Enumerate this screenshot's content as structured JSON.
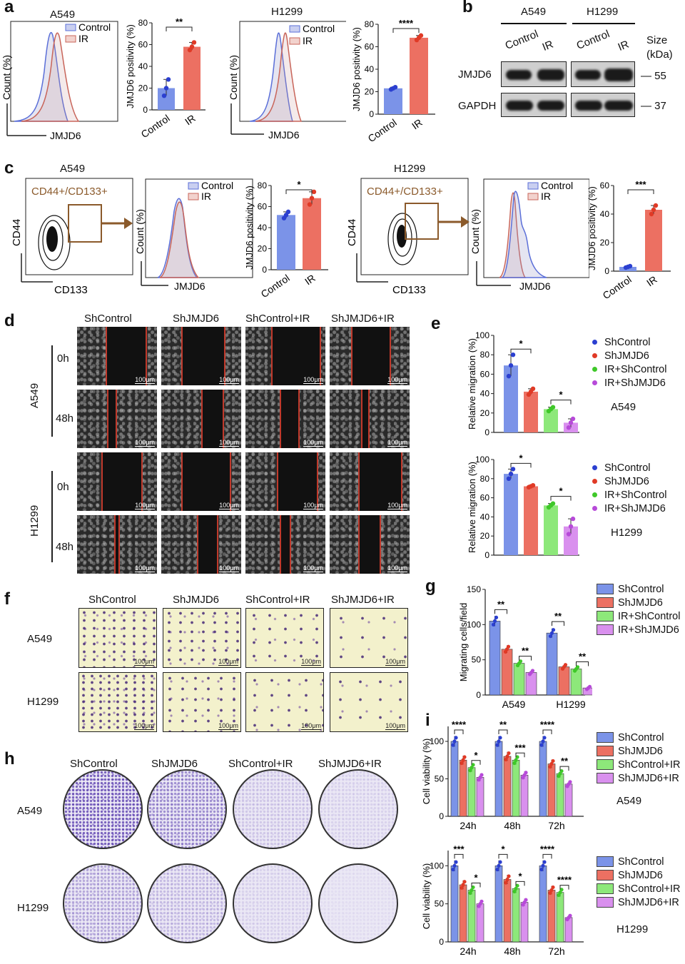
{
  "panel_labels": {
    "a": "a",
    "b": "b",
    "c": "c",
    "d": "d",
    "e": "e",
    "f": "f",
    "g": "g",
    "h": "h",
    "i": "i"
  },
  "panel_a": {
    "cell_lines": [
      "A549",
      "H1299"
    ],
    "hist_xlabel": "JMJD6",
    "hist_ylabel": "Count (%)",
    "legend": [
      "Control",
      "IR"
    ],
    "bar_ylabel": "JMJD6 positivity (%)"
  },
  "panel_b": {
    "cell_lines": [
      "A549",
      "H1299"
    ],
    "lanes": [
      "Control",
      "IR"
    ],
    "size_label": "Size\n(kDa)",
    "size_title": "Size",
    "size_unit": "(kDa)",
    "rows": [
      {
        "protein": "JMJD6",
        "size": "— 55"
      },
      {
        "protein": "GAPDH",
        "size": "— 37"
      }
    ]
  },
  "panel_c": {
    "cell_lines": [
      "A549",
      "H1299"
    ],
    "gate_label": "CD44+/CD133+",
    "dot_ylabel": "CD44",
    "dot_xlabel": "CD133",
    "hist_xlabel": "JMJD6",
    "hist_ylabel": "Count (%)",
    "legend": [
      "Control",
      "IR"
    ],
    "bar_ylabel": "JMJD6 positivity (%)"
  },
  "panel_d": {
    "columns": [
      "ShControl",
      "ShJMJD6",
      "ShControl+IR",
      "ShJMJD6+IR"
    ],
    "cell_lines": [
      "A549",
      "H1299"
    ],
    "timepoints": [
      "0h",
      "48h"
    ],
    "scale": "100μm"
  },
  "panel_f": {
    "columns": [
      "ShControl",
      "ShJMJD6",
      "ShControl+IR",
      "ShJMJD6+IR"
    ],
    "cell_lines": [
      "A549",
      "H1299"
    ],
    "scale": "100μm"
  },
  "panel_h": {
    "columns": [
      "ShControl",
      "ShJMJD6",
      "ShControl+IR",
      "ShJMJD6+IR"
    ],
    "cell_lines": [
      "A549",
      "H1299"
    ]
  },
  "colors": {
    "blue": "#7b93e8",
    "red": "#ec7062",
    "green": "#8de87a",
    "purple": "#d990ee",
    "blue_dot": "#2b3fd0",
    "red_dot": "#e03a26",
    "green_dot": "#3fc829",
    "purple_dot": "#b74ad9",
    "hist_blue": "#5b6fd8",
    "hist_red": "#c8655a"
  },
  "chart_data": [
    {
      "id": "a-A549",
      "type": "bar",
      "categories": [
        "Control",
        "IR"
      ],
      "values": [
        20,
        58
      ],
      "ylim": [
        0,
        80
      ],
      "yticks": [
        0,
        20,
        40,
        60,
        80
      ],
      "ylabel": "JMJD6 positivity (%)",
      "sig": [
        {
          "pair": [
            0,
            1
          ],
          "label": "**"
        }
      ],
      "points": [
        [
          13,
          20,
          28
        ],
        [
          55,
          58,
          62
        ]
      ]
    },
    {
      "id": "a-H1299",
      "type": "bar",
      "categories": [
        "Control",
        "IR"
      ],
      "values": [
        23,
        68
      ],
      "ylim": [
        0,
        80
      ],
      "yticks": [
        0,
        20,
        40,
        60,
        80
      ],
      "ylabel": "JMJD6 positivity (%)",
      "sig": [
        {
          "pair": [
            0,
            1
          ],
          "label": "****"
        }
      ],
      "points": [
        [
          22,
          23,
          24
        ],
        [
          66,
          68,
          70
        ]
      ]
    },
    {
      "id": "c-A549",
      "type": "bar",
      "categories": [
        "Control",
        "IR"
      ],
      "values": [
        52,
        68
      ],
      "ylim": [
        0,
        80
      ],
      "yticks": [
        0,
        20,
        40,
        60,
        80
      ],
      "ylabel": "JMJD6 positivity (%)",
      "sig": [
        {
          "pair": [
            0,
            1
          ],
          "label": "*"
        }
      ],
      "points": [
        [
          49,
          52,
          55
        ],
        [
          62,
          68,
          74
        ]
      ]
    },
    {
      "id": "c-H1299",
      "type": "bar",
      "categories": [
        "Control",
        "IR"
      ],
      "values": [
        3,
        43
      ],
      "ylim": [
        0,
        60
      ],
      "yticks": [
        0,
        20,
        40,
        60
      ],
      "ylabel": "JMJD6 positivity (%)",
      "sig": [
        {
          "pair": [
            0,
            1
          ],
          "label": "***"
        }
      ],
      "points": [
        [
          2.5,
          3,
          3.5
        ],
        [
          40,
          43,
          46
        ]
      ]
    },
    {
      "id": "e-A549",
      "type": "bar",
      "series_names": [
        "ShControl",
        "ShJMJD6",
        "IR+ShControl",
        "IR+ShJMJD6"
      ],
      "values": [
        69,
        42,
        24,
        10
      ],
      "ylim": [
        0,
        100
      ],
      "yticks": [
        0,
        20,
        40,
        60,
        80,
        100
      ],
      "ylabel": "Relative migration (%)",
      "annotation": "A549",
      "sig": [
        {
          "pair": [
            0,
            1
          ],
          "label": "*"
        },
        {
          "pair": [
            2,
            3
          ],
          "label": "*"
        }
      ],
      "points": [
        [
          58,
          69,
          80
        ],
        [
          39,
          42,
          45
        ],
        [
          22,
          24,
          26
        ],
        [
          5,
          10,
          14
        ]
      ]
    },
    {
      "id": "e-H1299",
      "type": "bar",
      "series_names": [
        "ShControl",
        "ShJMJD6",
        "IR+ShControl",
        "IR+ShJMJD6"
      ],
      "values": [
        85,
        72,
        52,
        30
      ],
      "ylim": [
        0,
        100
      ],
      "yticks": [
        0,
        20,
        40,
        60,
        80,
        100
      ],
      "ylabel": "Relative migration (%)",
      "annotation": "H1299",
      "sig": [
        {
          "pair": [
            0,
            1
          ],
          "label": "*"
        },
        {
          "pair": [
            2,
            3
          ],
          "label": "*"
        }
      ],
      "points": [
        [
          80,
          85,
          90
        ],
        [
          71,
          72,
          73
        ],
        [
          50,
          52,
          54
        ],
        [
          22,
          30,
          38
        ]
      ]
    },
    {
      "id": "g",
      "type": "bar",
      "categories": [
        "A549",
        "H1299"
      ],
      "series": [
        {
          "name": "ShControl",
          "values": [
            105,
            88
          ]
        },
        {
          "name": "ShJMJD6",
          "values": [
            65,
            40
          ]
        },
        {
          "name": "IR+ShControl",
          "values": [
            45,
            37
          ]
        },
        {
          "name": "IR+ShJMJD6",
          "values": [
            32,
            10
          ]
        }
      ],
      "ylim": [
        0,
        150
      ],
      "yticks": [
        0,
        50,
        100,
        150
      ],
      "ylabel": "Migrating cells/field",
      "sig": [
        {
          "group": 0,
          "pair": [
            0,
            1
          ],
          "label": "**"
        },
        {
          "group": 0,
          "pair": [
            2,
            3
          ],
          "label": "**"
        },
        {
          "group": 1,
          "pair": [
            0,
            1
          ],
          "label": "**"
        },
        {
          "group": 1,
          "pair": [
            2,
            3
          ],
          "label": "**"
        }
      ]
    },
    {
      "id": "i-A549",
      "type": "bar",
      "categories": [
        "24h",
        "48h",
        "72h"
      ],
      "series": [
        {
          "name": "ShControl",
          "values": [
            100,
            100,
            100
          ]
        },
        {
          "name": "ShJMJD6",
          "values": [
            75,
            80,
            70
          ]
        },
        {
          "name": "ShControl+IR",
          "values": [
            65,
            75,
            57
          ]
        },
        {
          "name": "ShJMJD6+IR",
          "values": [
            52,
            55,
            43
          ]
        }
      ],
      "ylim": [
        0,
        120
      ],
      "yticks": [
        0,
        50,
        100
      ],
      "ylabel": "Cell viability (%)",
      "annotation": "A549",
      "sig": [
        {
          "group": 0,
          "pair": [
            0,
            1
          ],
          "label": "****"
        },
        {
          "group": 0,
          "pair": [
            2,
            3
          ],
          "label": "*"
        },
        {
          "group": 1,
          "pair": [
            0,
            1
          ],
          "label": "**"
        },
        {
          "group": 1,
          "pair": [
            2,
            3
          ],
          "label": "***"
        },
        {
          "group": 2,
          "pair": [
            0,
            1
          ],
          "label": "****"
        },
        {
          "group": 2,
          "pair": [
            2,
            3
          ],
          "label": "**"
        }
      ]
    },
    {
      "id": "i-H1299",
      "type": "bar",
      "categories": [
        "24h",
        "48h",
        "72h"
      ],
      "series": [
        {
          "name": "ShControl",
          "values": [
            100,
            100,
            100
          ]
        },
        {
          "name": "ShJMJD6",
          "values": [
            75,
            82,
            68
          ]
        },
        {
          "name": "ShControl+IR",
          "values": [
            68,
            70,
            65
          ]
        },
        {
          "name": "ShJMJD6+IR",
          "values": [
            50,
            52,
            32
          ]
        }
      ],
      "ylim": [
        0,
        120
      ],
      "yticks": [
        0,
        50,
        100
      ],
      "ylabel": "Cell viability (%)",
      "annotation": "H1299",
      "sig": [
        {
          "group": 0,
          "pair": [
            0,
            1
          ],
          "label": "***"
        },
        {
          "group": 0,
          "pair": [
            2,
            3
          ],
          "label": "*"
        },
        {
          "group": 1,
          "pair": [
            0,
            1
          ],
          "label": "*"
        },
        {
          "group": 1,
          "pair": [
            2,
            3
          ],
          "label": "*"
        },
        {
          "group": 2,
          "pair": [
            0,
            1
          ],
          "label": "****"
        },
        {
          "group": 2,
          "pair": [
            2,
            3
          ],
          "label": "****"
        }
      ]
    }
  ],
  "legend_e": [
    "ShControl",
    "ShJMJD6",
    "IR+ShControl",
    "IR+ShJMJD6"
  ],
  "legend_g": [
    "ShControl",
    "ShJMJD6",
    "IR+ShControl",
    "IR+ShJMJD6"
  ],
  "legend_i": [
    "ShControl",
    "ShJMJD6",
    "ShControl+IR",
    "ShJMJD6+IR"
  ]
}
